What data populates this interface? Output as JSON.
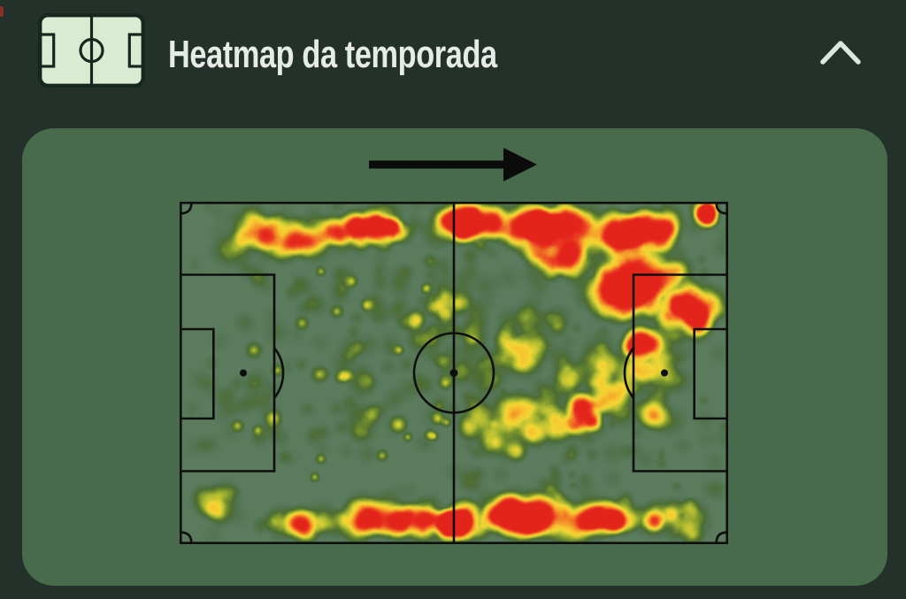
{
  "card": {
    "title": "Heatmap da temporada",
    "header_icon": "pitch-icon",
    "collapse_icon": "chevron-up-icon",
    "direction_icon": "arrow-right-icon"
  },
  "colors": {
    "background": "#24312b",
    "panel": "#476b4b",
    "title_text": "#e7ebe8",
    "chevron": "#dde7e1",
    "arrow": "#0b0b0b",
    "line": "#0e0e0e",
    "icon_fill": "#d9ecd2",
    "icon_stroke": "#15281e",
    "edge_artifact": "#8c2f24"
  },
  "chart_data": {
    "type": "heatmap",
    "title": "Heatmap da temporada",
    "subject": "season activity heatmap over a football pitch",
    "attack_direction": "left-to-right",
    "hot_zones_summary": [
      "very high activity along the top touchline, from centre to the right corner",
      "large red cluster in the right attacking third and right penalty-area top half",
      "high activity band along the bottom touchline, hottest centre-right of halfway",
      "moderate scattered activity across the right half and midfield",
      "sparse low activity in the left (own) penalty area"
    ],
    "seed": 7,
    "gain": 1.4,
    "palette": [
      {
        "pos": 0.0,
        "color": "#5b7d5e"
      },
      {
        "pos": 0.1,
        "color": "#527450"
      },
      {
        "pos": 0.22,
        "color": "#4d6c33"
      },
      {
        "pos": 0.34,
        "color": "#73902e"
      },
      {
        "pos": 0.46,
        "color": "#b5bf32"
      },
      {
        "pos": 0.58,
        "color": "#f2d735"
      },
      {
        "pos": 0.68,
        "color": "#f7c52f"
      },
      {
        "pos": 0.76,
        "color": "#f49b2a"
      },
      {
        "pos": 0.84,
        "color": "#ef6c26"
      },
      {
        "pos": 0.91,
        "color": "#ea3a22"
      },
      {
        "pos": 1.0,
        "color": "#e2231a"
      }
    ],
    "clusters": [
      {
        "x": 0.17,
        "y": 0.1,
        "sx": 0.1,
        "sy": 0.06,
        "n": 45,
        "r": 18,
        "a": 0.16
      },
      {
        "x": 0.32,
        "y": 0.08,
        "sx": 0.08,
        "sy": 0.05,
        "n": 40,
        "r": 16,
        "a": 0.2
      },
      {
        "x": 0.38,
        "y": 0.07,
        "sx": 0.04,
        "sy": 0.03,
        "n": 16,
        "r": 14,
        "a": 0.3
      },
      {
        "x": 0.52,
        "y": 0.06,
        "sx": 0.07,
        "sy": 0.04,
        "n": 42,
        "r": 18,
        "a": 0.24
      },
      {
        "x": 0.66,
        "y": 0.07,
        "sx": 0.1,
        "sy": 0.05,
        "n": 48,
        "r": 20,
        "a": 0.24
      },
      {
        "x": 0.83,
        "y": 0.09,
        "sx": 0.1,
        "sy": 0.06,
        "n": 48,
        "r": 20,
        "a": 0.24
      },
      {
        "x": 0.965,
        "y": 0.035,
        "sx": 0.03,
        "sy": 0.03,
        "n": 12,
        "r": 14,
        "a": 0.3
      },
      {
        "x": 0.83,
        "y": 0.25,
        "sx": 0.1,
        "sy": 0.1,
        "n": 70,
        "r": 20,
        "a": 0.23
      },
      {
        "x": 0.93,
        "y": 0.33,
        "sx": 0.05,
        "sy": 0.08,
        "n": 30,
        "r": 18,
        "a": 0.26
      },
      {
        "x": 0.7,
        "y": 0.17,
        "sx": 0.06,
        "sy": 0.06,
        "n": 28,
        "r": 18,
        "a": 0.2
      },
      {
        "x": 0.84,
        "y": 0.42,
        "sx": 0.05,
        "sy": 0.05,
        "n": 20,
        "r": 16,
        "a": 0.22
      },
      {
        "x": 0.8,
        "y": 0.54,
        "sx": 0.13,
        "sy": 0.12,
        "n": 55,
        "r": 18,
        "a": 0.16
      },
      {
        "x": 0.62,
        "y": 0.42,
        "sx": 0.1,
        "sy": 0.12,
        "n": 40,
        "r": 16,
        "a": 0.14
      },
      {
        "x": 0.6,
        "y": 0.66,
        "sx": 0.13,
        "sy": 0.12,
        "n": 50,
        "r": 17,
        "a": 0.15
      },
      {
        "x": 0.74,
        "y": 0.62,
        "sx": 0.04,
        "sy": 0.05,
        "n": 16,
        "r": 15,
        "a": 0.28
      },
      {
        "x": 0.38,
        "y": 0.93,
        "sx": 0.1,
        "sy": 0.05,
        "n": 50,
        "r": 18,
        "a": 0.2
      },
      {
        "x": 0.5,
        "y": 0.94,
        "sx": 0.06,
        "sy": 0.04,
        "n": 35,
        "r": 17,
        "a": 0.26
      },
      {
        "x": 0.63,
        "y": 0.92,
        "sx": 0.09,
        "sy": 0.05,
        "n": 50,
        "r": 19,
        "a": 0.25
      },
      {
        "x": 0.77,
        "y": 0.93,
        "sx": 0.08,
        "sy": 0.05,
        "n": 40,
        "r": 18,
        "a": 0.2
      },
      {
        "x": 0.9,
        "y": 0.93,
        "sx": 0.06,
        "sy": 0.05,
        "n": 25,
        "r": 16,
        "a": 0.16
      },
      {
        "x": 0.22,
        "y": 0.94,
        "sx": 0.08,
        "sy": 0.04,
        "n": 28,
        "r": 16,
        "a": 0.15
      },
      {
        "x": 0.08,
        "y": 0.89,
        "sx": 0.05,
        "sy": 0.06,
        "n": 14,
        "r": 15,
        "a": 0.14
      },
      {
        "x": 0.25,
        "y": 0.45,
        "sx": 0.15,
        "sy": 0.25,
        "n": 32,
        "r": 14,
        "a": 0.12,
        "u": 1
      },
      {
        "x": 0.12,
        "y": 0.6,
        "sx": 0.07,
        "sy": 0.15,
        "n": 12,
        "r": 14,
        "a": 0.11,
        "u": 1
      },
      {
        "x": 0.4,
        "y": 0.52,
        "sx": 0.08,
        "sy": 0.22,
        "n": 24,
        "r": 15,
        "a": 0.11,
        "u": 1
      },
      {
        "x": 0.47,
        "y": 0.3,
        "sx": 0.05,
        "sy": 0.06,
        "n": 12,
        "r": 13,
        "a": 0.17
      },
      {
        "x": 0.4,
        "y": 0.33,
        "sx": 0.12,
        "sy": 0.15,
        "n": 30,
        "r": 13,
        "a": 0.12,
        "u": 1
      },
      {
        "x": 0.5,
        "y": 0.38,
        "sx": 0.06,
        "sy": 0.15,
        "n": 18,
        "r": 15,
        "a": 0.11,
        "u": 1
      },
      {
        "x": 0.3,
        "y": 0.5,
        "sx": 0.2,
        "sy": 0.32,
        "n": 26,
        "r": 10,
        "a": 0.34,
        "u": 1
      },
      {
        "x": 0.5,
        "y": 0.5,
        "sx": 0.5,
        "sy": 0.5,
        "n": 130,
        "r": 13,
        "a": 0.07,
        "u": 1
      },
      {
        "x": 0.75,
        "y": 0.5,
        "sx": 0.25,
        "sy": 0.45,
        "n": 75,
        "r": 14,
        "a": 0.09,
        "u": 1
      },
      {
        "x": 0.72,
        "y": 0.5,
        "sx": 0.28,
        "sy": 0.45,
        "n": 60,
        "r": 9,
        "a": 0.12,
        "u": 1
      }
    ]
  }
}
